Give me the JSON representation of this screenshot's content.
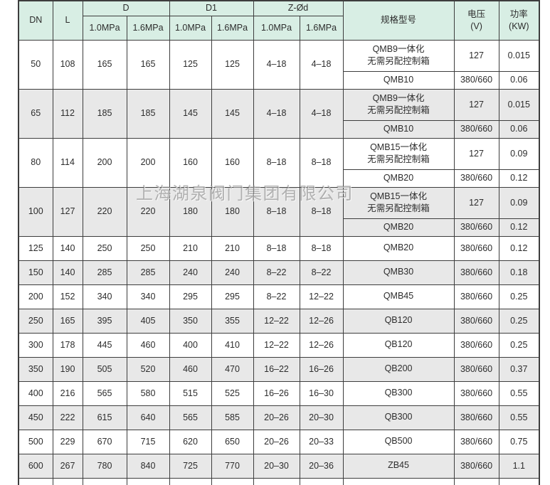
{
  "watermark": "上海湖泉阀门集团有限公司",
  "table": {
    "header": {
      "dn": "DN",
      "l": "L",
      "d": "D",
      "d1": "D1",
      "z": "Z-Ød",
      "p10": "1.0MPa",
      "p16": "1.6MPa",
      "spec": "规格型号",
      "voltage1": "电压",
      "voltage2": "(V)",
      "power1": "功率",
      "power2": "(KW)"
    },
    "rows": [
      {
        "dn": "50",
        "l": "108",
        "d10": "165",
        "d16": "165",
        "d110": "125",
        "d116": "125",
        "z10": "4–18",
        "z16": "4–18",
        "shade": false,
        "subs": [
          {
            "spec": [
              "QMB9一体化",
              "无需另配控制箱"
            ],
            "v": "127",
            "kw": "0.015"
          },
          {
            "spec": [
              "QMB10"
            ],
            "v": "380/660",
            "kw": "0.06"
          }
        ]
      },
      {
        "dn": "65",
        "l": "112",
        "d10": "185",
        "d16": "185",
        "d110": "145",
        "d116": "145",
        "z10": "4–18",
        "z16": "4–18",
        "shade": true,
        "subs": [
          {
            "spec": [
              "QMB9一体化",
              "无需另配控制箱"
            ],
            "v": "127",
            "kw": "0.015"
          },
          {
            "spec": [
              "QMB10"
            ],
            "v": "380/660",
            "kw": "0.06"
          }
        ]
      },
      {
        "dn": "80",
        "l": "114",
        "d10": "200",
        "d16": "200",
        "d110": "160",
        "d116": "160",
        "z10": "8–18",
        "z16": "8–18",
        "shade": false,
        "subs": [
          {
            "spec": [
              "QMB15一体化",
              "无需另配控制箱"
            ],
            "v": "127",
            "kw": "0.09"
          },
          {
            "spec": [
              "QMB20"
            ],
            "v": "380/660",
            "kw": "0.12"
          }
        ]
      },
      {
        "dn": "100",
        "l": "127",
        "d10": "220",
        "d16": "220",
        "d110": "180",
        "d116": "180",
        "z10": "8–18",
        "z16": "8–18",
        "shade": true,
        "subs": [
          {
            "spec": [
              "QMB15一体化",
              "无需另配控制箱"
            ],
            "v": "127",
            "kw": "0.09"
          },
          {
            "spec": [
              "QMB20"
            ],
            "v": "380/660",
            "kw": "0.12"
          }
        ]
      },
      {
        "dn": "125",
        "l": "140",
        "d10": "250",
        "d16": "250",
        "d110": "210",
        "d116": "210",
        "z10": "8–18",
        "z16": "8–18",
        "shade": false,
        "subs": [
          {
            "spec": [
              "QMB20"
            ],
            "v": "380/660",
            "kw": "0.12"
          }
        ]
      },
      {
        "dn": "150",
        "l": "140",
        "d10": "285",
        "d16": "285",
        "d110": "240",
        "d116": "240",
        "z10": "8–22",
        "z16": "8–22",
        "shade": true,
        "subs": [
          {
            "spec": [
              "QMB30"
            ],
            "v": "380/660",
            "kw": "0.18"
          }
        ]
      },
      {
        "dn": "200",
        "l": "152",
        "d10": "340",
        "d16": "340",
        "d110": "295",
        "d116": "295",
        "z10": "8–22",
        "z16": "12–22",
        "shade": false,
        "subs": [
          {
            "spec": [
              "QMB45"
            ],
            "v": "380/660",
            "kw": "0.25"
          }
        ]
      },
      {
        "dn": "250",
        "l": "165",
        "d10": "395",
        "d16": "405",
        "d110": "350",
        "d116": "355",
        "z10": "12–22",
        "z16": "12–26",
        "shade": true,
        "subs": [
          {
            "spec": [
              "QB120"
            ],
            "v": "380/660",
            "kw": "0.25"
          }
        ]
      },
      {
        "dn": "300",
        "l": "178",
        "d10": "445",
        "d16": "460",
        "d110": "400",
        "d116": "410",
        "z10": "12–22",
        "z16": "12–26",
        "shade": false,
        "subs": [
          {
            "spec": [
              "QB120"
            ],
            "v": "380/660",
            "kw": "0.25"
          }
        ]
      },
      {
        "dn": "350",
        "l": "190",
        "d10": "505",
        "d16": "520",
        "d110": "460",
        "d116": "470",
        "z10": "16–22",
        "z16": "16–26",
        "shade": true,
        "subs": [
          {
            "spec": [
              "QB200"
            ],
            "v": "380/660",
            "kw": "0.37"
          }
        ]
      },
      {
        "dn": "400",
        "l": "216",
        "d10": "565",
        "d16": "580",
        "d110": "515",
        "d116": "525",
        "z10": "16–26",
        "z16": "16–30",
        "shade": false,
        "subs": [
          {
            "spec": [
              "QB300"
            ],
            "v": "380/660",
            "kw": "0.55"
          }
        ]
      },
      {
        "dn": "450",
        "l": "222",
        "d10": "615",
        "d16": "640",
        "d110": "565",
        "d116": "585",
        "z10": "20–26",
        "z16": "20–30",
        "shade": true,
        "subs": [
          {
            "spec": [
              "QB300"
            ],
            "v": "380/660",
            "kw": "0.55"
          }
        ]
      },
      {
        "dn": "500",
        "l": "229",
        "d10": "670",
        "d16": "715",
        "d110": "620",
        "d116": "650",
        "z10": "20–26",
        "z16": "20–33",
        "shade": false,
        "subs": [
          {
            "spec": [
              "QB500"
            ],
            "v": "380/660",
            "kw": "0.75"
          }
        ]
      },
      {
        "dn": "600",
        "l": "267",
        "d10": "780",
        "d16": "840",
        "d110": "725",
        "d116": "770",
        "z10": "20–30",
        "z16": "20–36",
        "shade": true,
        "subs": [
          {
            "spec": [
              "ZB45"
            ],
            "v": "380/660",
            "kw": "1.1"
          }
        ]
      }
    ]
  }
}
